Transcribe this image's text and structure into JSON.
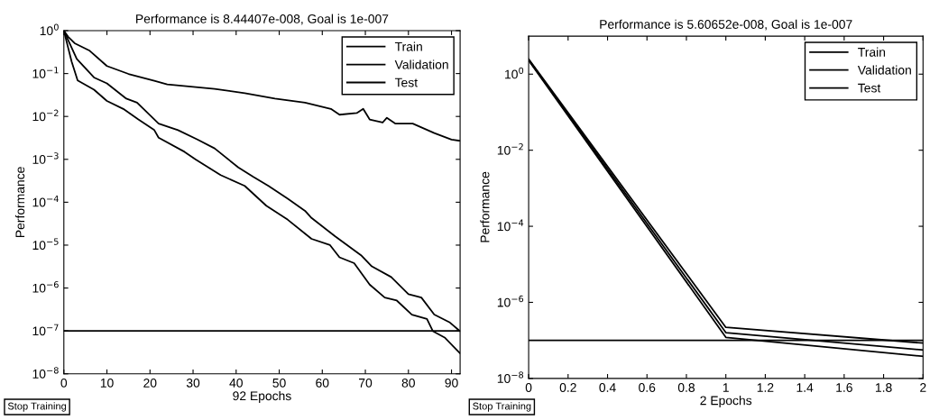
{
  "chart_data": [
    {
      "type": "line",
      "title": "Performance is 8.44407e-008, Goal is 1e-007",
      "xlabel": "92 Epochs",
      "ylabel": "Performance",
      "log": "y",
      "xlim": [
        0,
        92
      ],
      "ylim": [
        1e-08,
        1
      ],
      "xticks": [
        0,
        10,
        20,
        30,
        40,
        50,
        60,
        70,
        80,
        90
      ],
      "yticks": [
        {
          "value": 1e-08,
          "label": "10$^{−8}$"
        },
        {
          "value": 1e-07,
          "label": "10$^{−7}$"
        },
        {
          "value": 1e-06,
          "label": "10$^{−6}$"
        },
        {
          "value": 1e-05,
          "label": "10$^{−5}$"
        },
        {
          "value": 0.0001,
          "label": "10$^{−4}$"
        },
        {
          "value": 0.001,
          "label": "10$^{−3}$"
        },
        {
          "value": 0.01,
          "label": "10$^{−2}$"
        },
        {
          "value": 0.1,
          "label": "10$^{−1}$"
        },
        {
          "value": 1,
          "label": "10$^{0}$"
        }
      ],
      "legend": "top right",
      "grid": false,
      "ref_lines": [
        {
          "axis": "y",
          "value": 1e-07,
          "color": "#000000"
        }
      ],
      "annotations": [
        "Stop Training"
      ],
      "series": [
        {
          "name": "Train",
          "color": "#000000",
          "x": [
            0,
            1.8,
            3.2,
            7,
            10,
            13.8,
            17.3,
            21,
            22,
            28,
            30.7,
            36.4,
            42,
            47,
            52,
            57.5,
            61.8,
            64,
            67.4,
            71,
            74.5,
            77.3,
            80.8,
            84.3,
            85.7,
            88.5,
            92
          ],
          "values": [
            1,
            0.19,
            0.069,
            0.042,
            0.023,
            0.015,
            0.0085,
            0.0048,
            0.0032,
            0.0015,
            0.00098,
            0.00043,
            0.00024,
            8.3e-05,
            3.9e-05,
            1.4e-05,
            1e-05,
            5.2e-06,
            3.8e-06,
            1.2e-06,
            6e-07,
            5.1e-07,
            2.4e-07,
            1.9e-07,
            9.8e-08,
            6.9e-08,
            3e-08
          ]
        },
        {
          "name": "Validation",
          "color": "#000000",
          "x": [
            0,
            3,
            7,
            10,
            14.5,
            17,
            22,
            26.5,
            31,
            35,
            40.5,
            44,
            47.5,
            52,
            56,
            57.5,
            63,
            69,
            71.5,
            76,
            80,
            83,
            86,
            89.5,
            92
          ],
          "values": [
            1,
            0.22,
            0.081,
            0.059,
            0.026,
            0.021,
            0.0068,
            0.0048,
            0.0029,
            0.0018,
            0.00065,
            0.00039,
            0.00024,
            0.00012,
            6.3e-05,
            4.3e-05,
            1.6e-05,
            5.8e-06,
            3.2e-06,
            1.8e-06,
            7.2e-07,
            6e-07,
            2.4e-07,
            1.6e-07,
            9.8e-08
          ]
        },
        {
          "name": "Test",
          "color": "#000000",
          "x": [
            0,
            1,
            2.5,
            6,
            10,
            15,
            21,
            24,
            35,
            42,
            49,
            56,
            62,
            64,
            68,
            69.5,
            71,
            74,
            75,
            77,
            81,
            86,
            90,
            92
          ],
          "values": [
            1,
            0.72,
            0.51,
            0.34,
            0.15,
            0.098,
            0.068,
            0.056,
            0.044,
            0.035,
            0.026,
            0.021,
            0.015,
            0.011,
            0.012,
            0.015,
            0.0085,
            0.0072,
            0.0093,
            0.0068,
            0.0068,
            0.0041,
            0.0029,
            0.0027
          ]
        }
      ]
    },
    {
      "type": "line",
      "title": "Performance is 5.60652e-008, Goal is 1e-007",
      "xlabel": "2 Epochs",
      "ylabel": "Performance",
      "log": "y",
      "xlim": [
        0,
        2
      ],
      "ylim": [
        1e-08,
        10
      ],
      "xticks": [
        0,
        0.2,
        0.4,
        0.6,
        0.8,
        1,
        1.2,
        1.4,
        1.6,
        1.8,
        2
      ],
      "yticks": [
        {
          "value": 1e-08,
          "label": "10$^{−8}$"
        },
        {
          "value": 1e-06,
          "label": "10$^{−6}$"
        },
        {
          "value": 0.0001,
          "label": "10$^{−4}$"
        },
        {
          "value": 0.01,
          "label": "10$^{−2}$"
        },
        {
          "value": 1,
          "label": "10$^{0}$"
        }
      ],
      "legend": "top right",
      "grid": false,
      "ref_lines": [
        {
          "axis": "y",
          "value": 1e-07,
          "color": "#000000"
        }
      ],
      "annotations": [
        "Stop Training"
      ],
      "series": [
        {
          "name": "Train",
          "color": "#000000",
          "x": [
            0,
            1,
            2
          ],
          "values": [
            2.3,
            1.2e-07,
            3.8e-08
          ]
        },
        {
          "name": "Validation",
          "color": "#000000",
          "x": [
            0,
            1,
            2
          ],
          "values": [
            2.5,
            2.2e-07,
            8.5e-08
          ]
        },
        {
          "name": "Test",
          "color": "#000000",
          "x": [
            0,
            1,
            2
          ],
          "values": [
            2.4,
            1.6e-07,
            5.6e-08
          ]
        }
      ]
    }
  ]
}
